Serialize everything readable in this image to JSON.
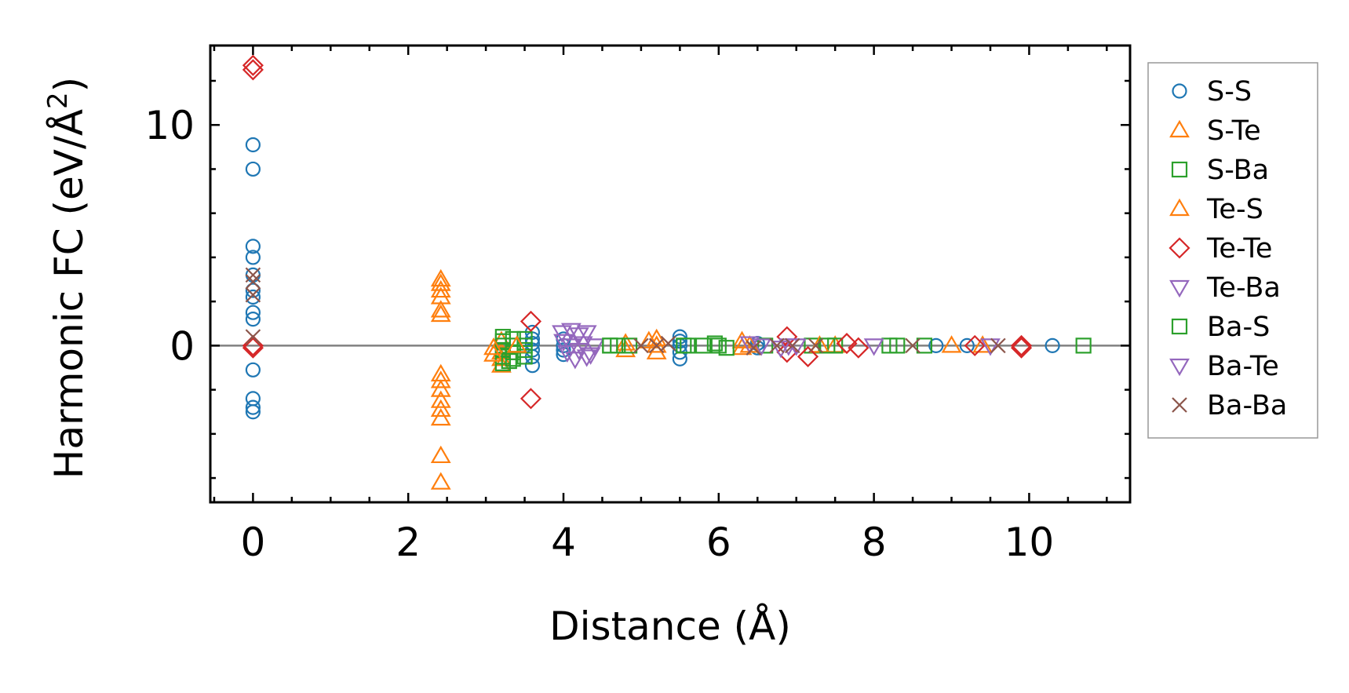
{
  "chart_data": {
    "type": "scatter",
    "title": "",
    "xlabel": "Distance (Å)",
    "ylabel_main": "Harmonic FC (eV/Å",
    "ylabel_sup": "2",
    "ylabel_close": ")",
    "xlim": [
      -0.55,
      11.3
    ],
    "ylim": [
      -7.1,
      13.6
    ],
    "xticks": [
      0,
      2,
      4,
      6,
      8,
      10
    ],
    "xtick_labels": [
      "0",
      "2",
      "4",
      "6",
      "8",
      "10"
    ],
    "yticks": [
      0,
      10
    ],
    "ytick_labels": [
      "0",
      "10"
    ],
    "x_minor_step": 0.5,
    "y_minor_step": 2,
    "zero_line": true,
    "legend_position": "right-outside",
    "series": [
      {
        "name": "S-S",
        "marker": "circle",
        "color": "#1f77b4",
        "x": [
          0,
          0,
          0,
          0,
          0,
          0,
          0,
          0,
          0,
          0,
          0,
          0,
          0,
          3.6,
          3.6,
          3.6,
          3.6,
          3.6,
          3.6,
          4.0,
          4.0,
          4.0,
          4.0,
          5.5,
          5.5,
          5.5,
          5.5,
          5.5,
          6.5,
          6.5,
          8.8,
          9.2,
          10.3
        ],
        "y": [
          9.1,
          8.0,
          4.5,
          4.0,
          3.2,
          2.5,
          2.2,
          1.5,
          1.2,
          -1.1,
          -2.4,
          -2.8,
          -3.0,
          0.6,
          0.3,
          0.1,
          -0.2,
          -0.5,
          -0.9,
          0.3,
          0.0,
          -0.2,
          -0.4,
          0.4,
          0.2,
          0.0,
          -0.3,
          -0.6,
          0.1,
          -0.1,
          0.0,
          0.0,
          0.0
        ]
      },
      {
        "name": "S-Te",
        "marker": "triangle-up",
        "color": "#ff7f0e",
        "x": [
          2.42,
          2.42,
          2.42,
          2.42,
          2.42,
          2.42,
          2.42,
          2.42,
          2.42,
          2.42,
          2.42,
          2.42,
          2.42,
          2.42,
          3.2,
          3.2,
          3.2,
          3.2,
          4.8,
          4.8,
          5.2,
          5.2,
          5.2,
          6.3,
          6.3,
          7.5,
          9.4
        ],
        "y": [
          3.0,
          2.8,
          2.5,
          2.2,
          1.6,
          1.4,
          -1.3,
          -1.6,
          -2.0,
          -2.5,
          -2.9,
          -3.3,
          -5.0,
          -6.2,
          0.2,
          -0.3,
          -0.6,
          -0.9,
          0.1,
          -0.2,
          0.3,
          0.0,
          -0.3,
          0.2,
          -0.1,
          0.0,
          0.0
        ]
      },
      {
        "name": "S-Ba",
        "marker": "square",
        "color": "#2ca02c",
        "x": [
          3.22,
          3.22,
          3.22,
          3.22,
          3.22,
          3.22,
          3.35,
          3.35,
          3.35,
          3.35,
          3.5,
          3.5,
          3.5,
          3.5,
          4.6,
          4.7,
          4.85,
          5.6,
          5.8,
          5.95,
          6.1,
          6.6,
          7.2,
          7.5,
          8.2,
          8.3,
          8.65,
          10.7
        ],
        "y": [
          0.4,
          0.2,
          0.0,
          -0.2,
          -0.5,
          -0.8,
          0.3,
          0.0,
          -0.3,
          -0.6,
          0.3,
          0.0,
          -0.2,
          -0.5,
          0.0,
          0.0,
          0.0,
          0.0,
          0.0,
          0.1,
          -0.1,
          0.0,
          0.0,
          0.0,
          0.0,
          0.0,
          0.0,
          0.0
        ]
      },
      {
        "name": "Te-S",
        "marker": "triangle-up",
        "color": "#ff7f0e",
        "x": [
          3.1,
          3.1,
          3.4,
          5.1,
          6.4,
          7.3,
          9.0
        ],
        "y": [
          -0.1,
          -0.4,
          0.0,
          0.2,
          0.0,
          0.0,
          0.0
        ]
      },
      {
        "name": "Te-Te",
        "marker": "diamond",
        "color": "#d62728",
        "x": [
          0,
          0,
          0,
          0,
          3.58,
          3.58,
          6.88,
          6.88,
          7.15,
          7.65,
          7.8,
          9.3,
          9.9,
          9.9
        ],
        "y": [
          12.7,
          12.5,
          0.0,
          -0.1,
          1.1,
          -2.4,
          0.4,
          -0.3,
          -0.5,
          0.1,
          -0.1,
          0.0,
          0.0,
          -0.1
        ]
      },
      {
        "name": "Te-Ba",
        "marker": "triangle-down",
        "color": "#9467bd",
        "x": [
          3.98,
          4.0,
          4.05,
          4.1,
          4.1,
          4.15,
          4.2,
          4.2,
          4.25,
          4.3,
          4.35,
          4.4,
          6.4,
          6.55,
          6.8,
          7.0,
          8.0
        ],
        "y": [
          0.6,
          0.2,
          -0.3,
          0.7,
          0.0,
          -0.6,
          0.5,
          -0.2,
          0.1,
          0.6,
          -0.4,
          0.0,
          0.1,
          0.0,
          -0.1,
          0.0,
          0.0
        ]
      },
      {
        "name": "Ba-S",
        "marker": "square",
        "color": "#2ca02c",
        "x": [
          3.3,
          4.6,
          5.55,
          6.0,
          7.4
        ],
        "y": [
          -0.7,
          0.0,
          0.0,
          0.0,
          0.0
        ]
      },
      {
        "name": "Ba-Te",
        "marker": "triangle-down",
        "color": "#9467bd",
        "x": [
          4.3,
          6.9,
          9.5
        ],
        "y": [
          -0.5,
          0.0,
          0.0
        ]
      },
      {
        "name": "Ba-Ba",
        "marker": "x",
        "color": "#8c564b",
        "x": [
          0,
          0,
          0,
          0,
          5.0,
          5.2,
          5.35,
          6.45,
          6.75,
          6.95,
          7.25,
          8.5,
          9.6
        ],
        "y": [
          3.2,
          2.9,
          2.3,
          0.4,
          0.0,
          0.0,
          0.1,
          -0.1,
          0.0,
          0.0,
          0.0,
          0.0,
          0.0
        ]
      }
    ]
  }
}
